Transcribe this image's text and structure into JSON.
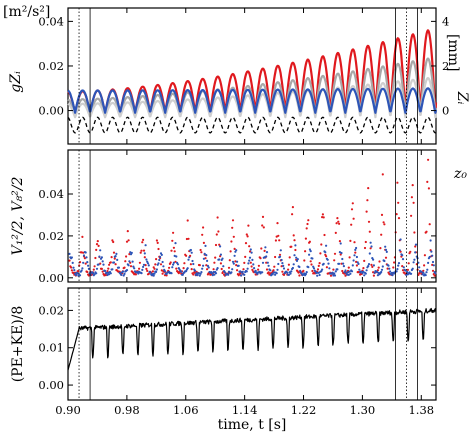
{
  "chart_data": [
    {
      "panel": "top",
      "type": "line",
      "unit_left": "[m²/s²]",
      "unit_right": "[mm]",
      "ylabel_left": "gZᵢ",
      "ylabel_right": "Zᵢ",
      "extra_label": "z₀",
      "ylim": [
        -0.015,
        0.046
      ],
      "yticks": [
        "0.04",
        "0.02",
        "0.00"
      ],
      "yticks_right": [
        "4",
        "2",
        "0"
      ],
      "period_s": 0.0204,
      "series": [
        {
          "color": "#e0191e",
          "style": "solid",
          "amp_start": 0.0095,
          "amp_end": 0.038,
          "baseline": -0.001
        },
        {
          "color": "#a8a8a8",
          "style": "solid",
          "amp_start": 0.007,
          "amp_end": 0.026,
          "baseline": -0.002
        },
        {
          "color": "#cfcfcf",
          "style": "solid",
          "amp_start": 0.006,
          "amp_end": 0.018,
          "baseline": -0.003
        },
        {
          "color": "#2d55b8",
          "style": "solid",
          "amp_start": 0.01,
          "amp_end": 0.011,
          "baseline": -0.001
        },
        {
          "color": "#000000",
          "style": "dashed",
          "amp_start": 0.007,
          "amp_end": 0.007,
          "baseline": -0.01
        }
      ]
    },
    {
      "panel": "middle",
      "type": "scatter",
      "ylabel": "V₁²/2, V₈²/2",
      "ylim": [
        -0.002,
        0.061
      ],
      "yticks": [
        "0.04",
        "0.02",
        "0.00"
      ],
      "series": [
        {
          "color": "#e0191e",
          "peak_start": 0.016,
          "peak_end": 0.05
        },
        {
          "color": "#2d55b8",
          "peak_start": 0.012,
          "peak_end": 0.014
        }
      ]
    },
    {
      "panel": "bottom",
      "type": "line",
      "ylabel": "(PE+KE)/8",
      "ylim": [
        -0.004,
        0.026
      ],
      "yticks": [
        "0.02",
        "0.01",
        "0.00"
      ],
      "series": [
        {
          "color": "#000000",
          "mean_start": 0.015,
          "mean_end": 0.02,
          "dip_depth": 0.008
        }
      ]
    }
  ],
  "xaxis": {
    "label": "time, t [s]",
    "xlim": [
      0.9,
      1.4
    ],
    "ticks": [
      "0.90",
      "0.98",
      "1.06",
      "1.14",
      "1.22",
      "1.30",
      "1.38"
    ],
    "tick_values": [
      0.9,
      0.98,
      1.06,
      1.14,
      1.22,
      1.3,
      1.38
    ]
  },
  "reference_lines": [
    {
      "x": 0.915,
      "style": "dotted"
    },
    {
      "x": 0.93,
      "style": "solid"
    },
    {
      "x": 1.345,
      "style": "solid"
    },
    {
      "x": 1.36,
      "style": "dotted"
    },
    {
      "x": 1.375,
      "style": "solid"
    }
  ]
}
